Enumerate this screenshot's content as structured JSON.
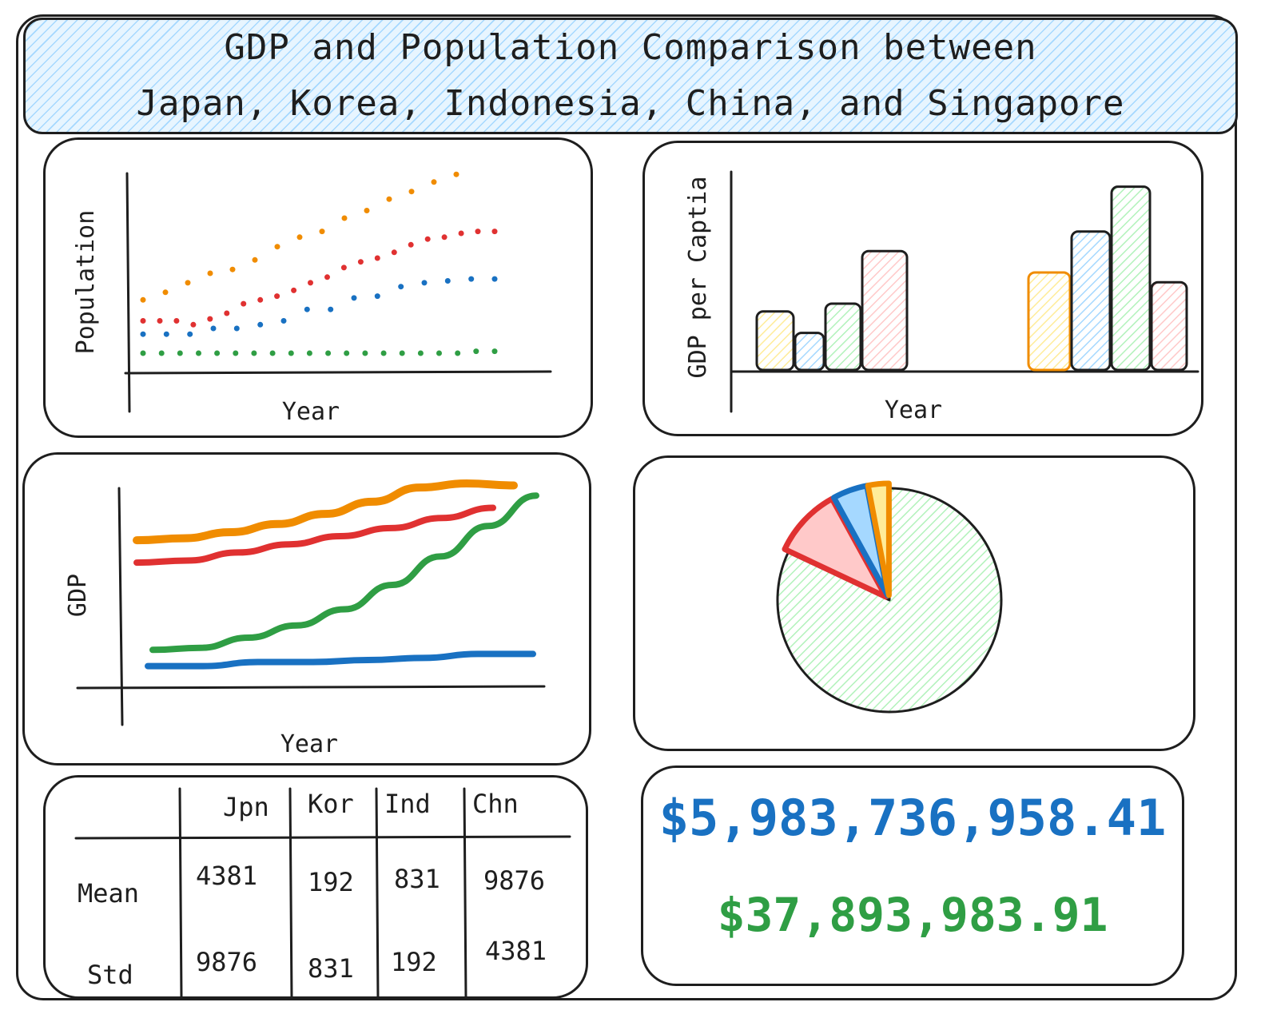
{
  "title": {
    "line1": "GDP and Population Comparison between",
    "line2": "Japan, Korea, Indonesia, China, and Singapore"
  },
  "colors": {
    "orange": "#f08c00",
    "red": "#e03131",
    "blue": "#1971c2",
    "green": "#2f9e44",
    "yellow_fill": "#ffec99",
    "blue_fill": "#a5d8ff",
    "green_fill": "#b2f2bb",
    "red_fill": "#ffc9c9"
  },
  "population_chart": {
    "xlabel": "Year",
    "ylabel": "Population"
  },
  "gdp_per_capita_chart": {
    "xlabel": "Year",
    "ylabel": "GDP per Captia"
  },
  "gdp_chart": {
    "xlabel": "Year",
    "ylabel": "GDP"
  },
  "stats_table": {
    "columns": [
      "Jpn",
      "Kor",
      "Ind",
      "Chn"
    ],
    "rows": [
      {
        "label": "Mean",
        "values": [
          "4381",
          "192",
          "831",
          "9876"
        ]
      },
      {
        "label": "Std",
        "values": [
          "9876",
          "831",
          "192",
          "4381"
        ]
      }
    ]
  },
  "kpi": {
    "value1": "$5,983,736,958.41",
    "value2": "$37,893,983.91",
    "color1": "#1971c2",
    "color2": "#2f9e44"
  },
  "chart_data": [
    {
      "type": "scatter",
      "xlabel": "Year",
      "ylabel": "Population",
      "series": [
        {
          "color": "#f08c00",
          "x": [
            1,
            2,
            3,
            4,
            5,
            6,
            7,
            8,
            9,
            10,
            11,
            12,
            13,
            14,
            15
          ],
          "values": [
            0.36,
            0.4,
            0.45,
            0.5,
            0.52,
            0.57,
            0.64,
            0.69,
            0.72,
            0.79,
            0.83,
            0.89,
            0.93,
            0.98,
            1.02
          ]
        },
        {
          "color": "#e03131",
          "x": [
            1,
            2,
            3,
            4,
            5,
            6,
            7,
            8,
            9,
            10,
            11,
            12,
            13,
            14,
            15,
            16,
            17,
            18,
            19,
            20,
            21,
            22
          ],
          "values": [
            0.25,
            0.25,
            0.25,
            0.23,
            0.26,
            0.29,
            0.34,
            0.36,
            0.38,
            0.41,
            0.45,
            0.48,
            0.53,
            0.56,
            0.58,
            0.61,
            0.65,
            0.68,
            0.69,
            0.71,
            0.72,
            0.72
          ]
        },
        {
          "color": "#1971c2",
          "x": [
            1,
            2,
            3,
            4,
            5,
            6,
            7,
            8,
            9,
            10,
            11,
            12,
            13,
            14,
            15,
            16
          ],
          "values": [
            0.18,
            0.18,
            0.18,
            0.21,
            0.21,
            0.23,
            0.25,
            0.31,
            0.31,
            0.37,
            0.38,
            0.43,
            0.45,
            0.46,
            0.47,
            0.47
          ]
        },
        {
          "color": "#2f9e44",
          "x": [
            1,
            2,
            3,
            4,
            5,
            6,
            7,
            8,
            9,
            10,
            11,
            12,
            13,
            14,
            15,
            16,
            17,
            18,
            19,
            20
          ],
          "values": [
            0.08,
            0.08,
            0.08,
            0.08,
            0.08,
            0.08,
            0.08,
            0.08,
            0.08,
            0.08,
            0.08,
            0.08,
            0.08,
            0.08,
            0.08,
            0.08,
            0.08,
            0.08,
            0.09,
            0.09
          ]
        }
      ]
    },
    {
      "type": "bar",
      "xlabel": "Year",
      "ylabel": "GDP per Captia",
      "groups": [
        {
          "values": [
            0.3,
            0.19,
            0.34,
            0.61
          ],
          "fills": [
            "#ffec99",
            "#a5d8ff",
            "#b2f2bb",
            "#ffc9c9"
          ],
          "strokes": [
            "#1e1e1e",
            "#1e1e1e",
            "#1e1e1e",
            "#1e1e1e"
          ]
        },
        {
          "values": [
            0.5,
            0.71,
            0.94,
            0.45
          ],
          "fills": [
            "#ffec99",
            "#a5d8ff",
            "#b2f2bb",
            "#ffc9c9"
          ],
          "strokes": [
            "#f08c00",
            "#1e1e1e",
            "#1e1e1e",
            "#1e1e1e"
          ]
        }
      ]
    },
    {
      "type": "line",
      "xlabel": "Year",
      "ylabel": "GDP",
      "series": [
        {
          "color": "#f08c00",
          "values": [
            0.72,
            0.73,
            0.76,
            0.8,
            0.85,
            0.91,
            0.98,
            1.0,
            0.99
          ]
        },
        {
          "color": "#e03131",
          "values": [
            0.61,
            0.62,
            0.66,
            0.7,
            0.74,
            0.78,
            0.83,
            0.88
          ]
        },
        {
          "color": "#2f9e44",
          "values": [
            0.18,
            0.19,
            0.24,
            0.3,
            0.38,
            0.5,
            0.64,
            0.79,
            0.94
          ]
        },
        {
          "color": "#1971c2",
          "values": [
            0.1,
            0.1,
            0.12,
            0.12,
            0.13,
            0.14,
            0.16,
            0.16
          ]
        }
      ]
    },
    {
      "type": "pie",
      "slices": [
        {
          "value": 0.82,
          "fill": "#b2f2bb",
          "stroke": "#1e1e1e"
        },
        {
          "value": 0.1,
          "fill": "#ffc9c9",
          "stroke": "#e03131"
        },
        {
          "value": 0.05,
          "fill": "#a5d8ff",
          "stroke": "#1971c2"
        },
        {
          "value": 0.03,
          "fill": "#ffec99",
          "stroke": "#f08c00"
        }
      ]
    }
  ]
}
